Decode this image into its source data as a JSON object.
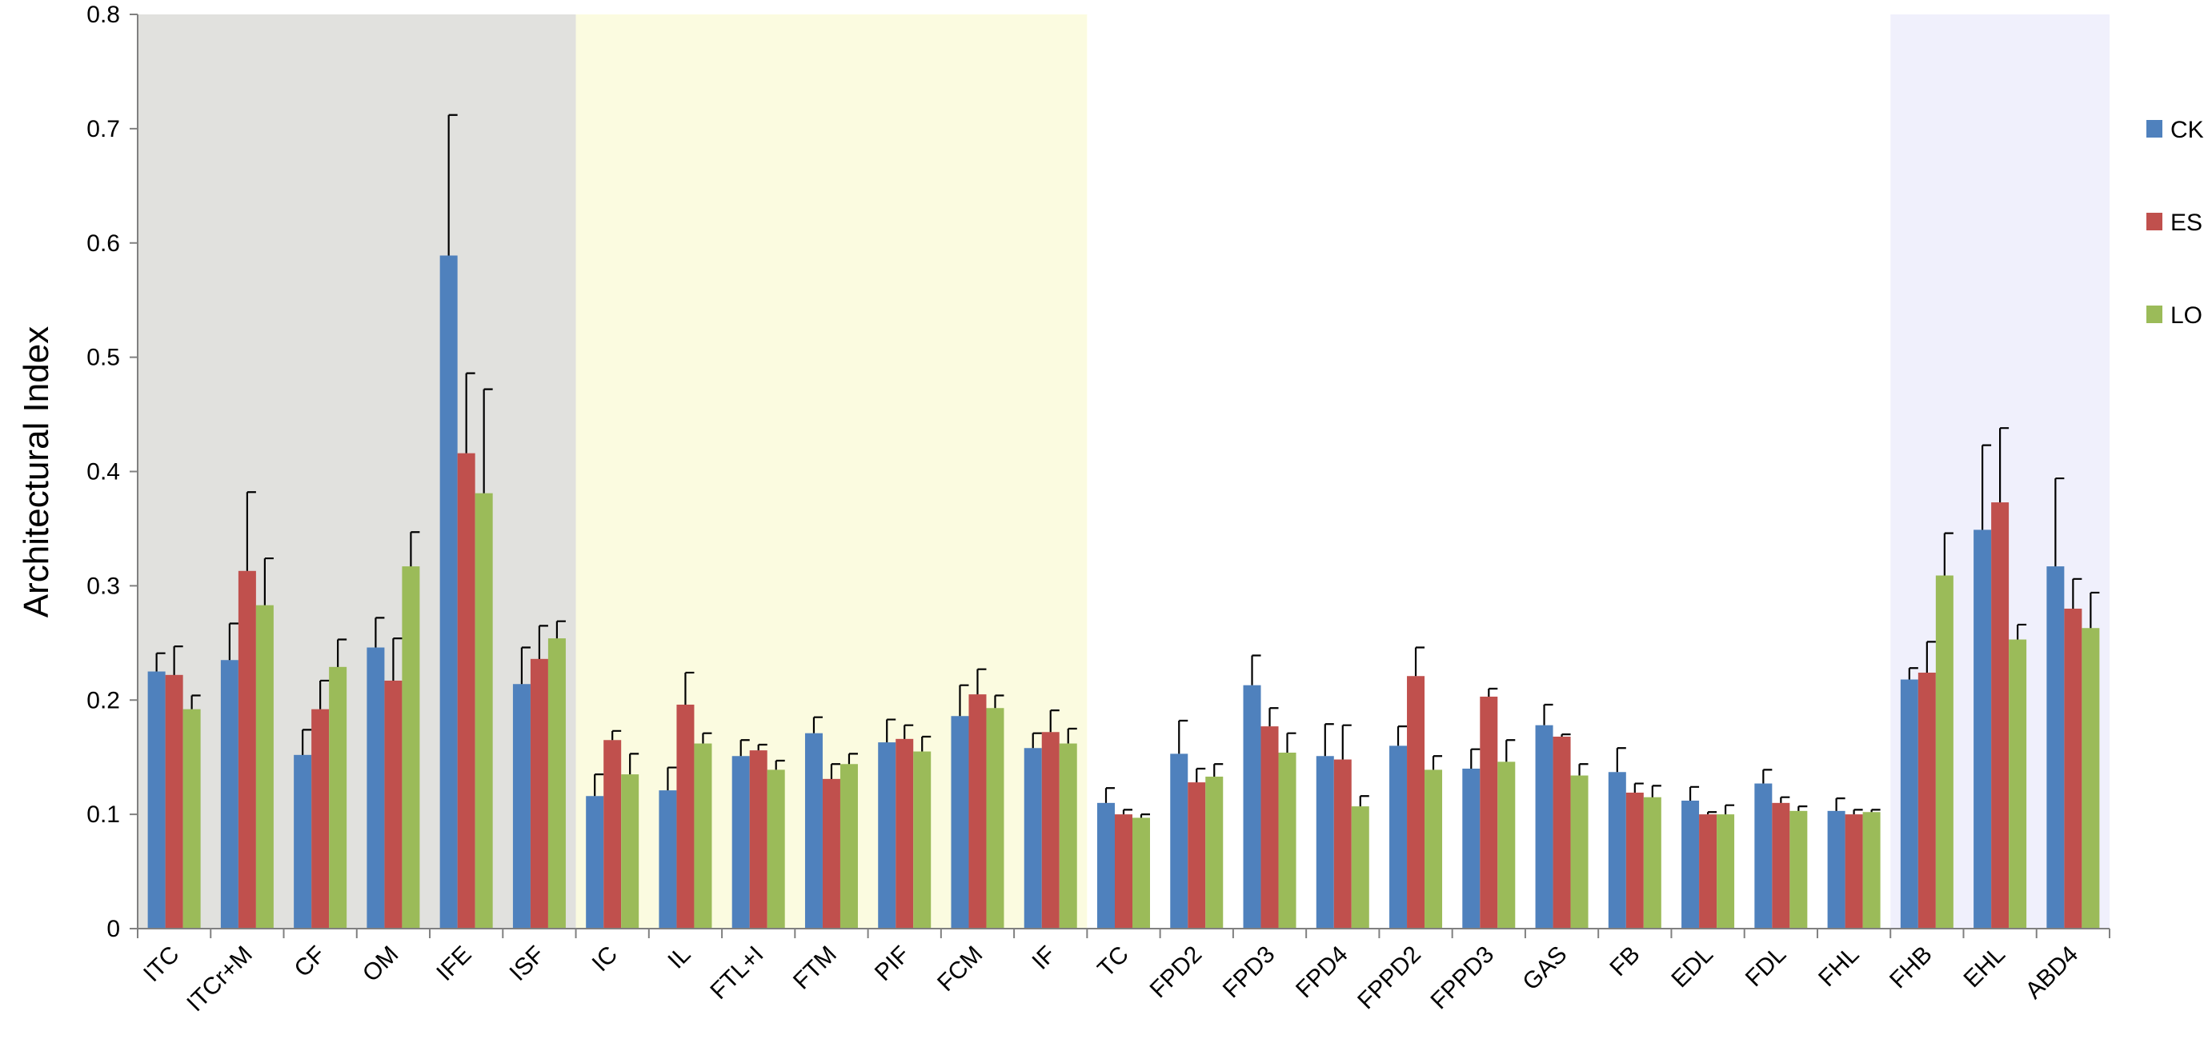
{
  "chart_data": {
    "type": "bar",
    "title": "",
    "xlabel": "",
    "ylabel": "Architectural Index",
    "ylim": [
      0,
      0.8
    ],
    "yticks": [
      "0",
      "0.1",
      "0.2",
      "0.3",
      "0.4",
      "0.5",
      "0.6",
      "0.7",
      "0.8"
    ],
    "grid": false,
    "legend_position": "right",
    "categories": [
      "ITC",
      "ITCr+M",
      "CF",
      "OM",
      "IFE",
      "ISF",
      "IC",
      "IL",
      "FTL+I",
      "FTM",
      "PIF",
      "FCM",
      "IF",
      "TC",
      "FPD2",
      "FPD3",
      "FPD4",
      "FPPD2",
      "FPPD3",
      "GAS",
      "FB",
      "EDL",
      "FDL",
      "FHL",
      "FHB",
      "EHL",
      "ABD4"
    ],
    "series": [
      {
        "name": "CK",
        "color": "#4F81BD",
        "values": [
          0.225,
          0.235,
          0.152,
          0.246,
          0.589,
          0.214,
          0.116,
          0.121,
          0.151,
          0.171,
          0.163,
          0.186,
          0.158,
          0.11,
          0.153,
          0.213,
          0.151,
          0.16,
          0.14,
          0.178,
          0.137,
          0.112,
          0.127,
          0.103,
          0.218,
          0.349,
          0.317
        ],
        "errors": [
          0.016,
          0.032,
          0.022,
          0.026,
          0.123,
          0.032,
          0.019,
          0.02,
          0.014,
          0.014,
          0.02,
          0.027,
          0.013,
          0.013,
          0.029,
          0.026,
          0.028,
          0.017,
          0.017,
          0.018,
          0.021,
          0.012,
          0.012,
          0.011,
          0.01,
          0.074,
          0.077
        ]
      },
      {
        "name": "ES",
        "color": "#C0504D",
        "values": [
          0.222,
          0.313,
          0.192,
          0.217,
          0.416,
          0.236,
          0.165,
          0.196,
          0.156,
          0.131,
          0.166,
          0.205,
          0.172,
          0.1,
          0.128,
          0.177,
          0.148,
          0.221,
          0.203,
          0.168,
          0.119,
          0.1,
          0.11,
          0.1,
          0.224,
          0.373,
          0.28
        ]
      },
      {
        "name": "LO",
        "color": "#9BBB59",
        "values": [
          0.192,
          0.283,
          0.229,
          0.317,
          0.381,
          0.254,
          0.135,
          0.162,
          0.139,
          0.144,
          0.155,
          0.193,
          0.162,
          0.097,
          0.133,
          0.154,
          0.107,
          0.139,
          0.146,
          0.134,
          0.115,
          0.1,
          0.103,
          0.102,
          0.309,
          0.253,
          0.263
        ]
      }
    ],
    "errors": {
      "ES": [
        0.025,
        0.069,
        0.025,
        0.037,
        0.07,
        0.029,
        0.008,
        0.028,
        0.005,
        0.013,
        0.012,
        0.022,
        0.019,
        0.004,
        0.012,
        0.016,
        0.03,
        0.025,
        0.007,
        0.002,
        0.008,
        0.002,
        0.005,
        0.004,
        0.027,
        0.065,
        0.026
      ],
      "LO": [
        0.012,
        0.041,
        0.024,
        0.03,
        0.091,
        0.015,
        0.018,
        0.009,
        0.008,
        0.009,
        0.013,
        0.011,
        0.013,
        0.003,
        0.011,
        0.017,
        0.009,
        0.012,
        0.019,
        0.01,
        0.01,
        0.008,
        0.004,
        0.002,
        0.037,
        0.013,
        0.031
      ]
    },
    "shaded_regions": [
      {
        "from_category": "ITC",
        "to_category": "ISF",
        "color": "#E1E1DE"
      },
      {
        "from_category": "IC",
        "to_category": "IF",
        "color": "#FBFBE0"
      },
      {
        "from_category": "FHB",
        "to_category": "ABD4",
        "color": "#F0F0FC"
      }
    ]
  }
}
